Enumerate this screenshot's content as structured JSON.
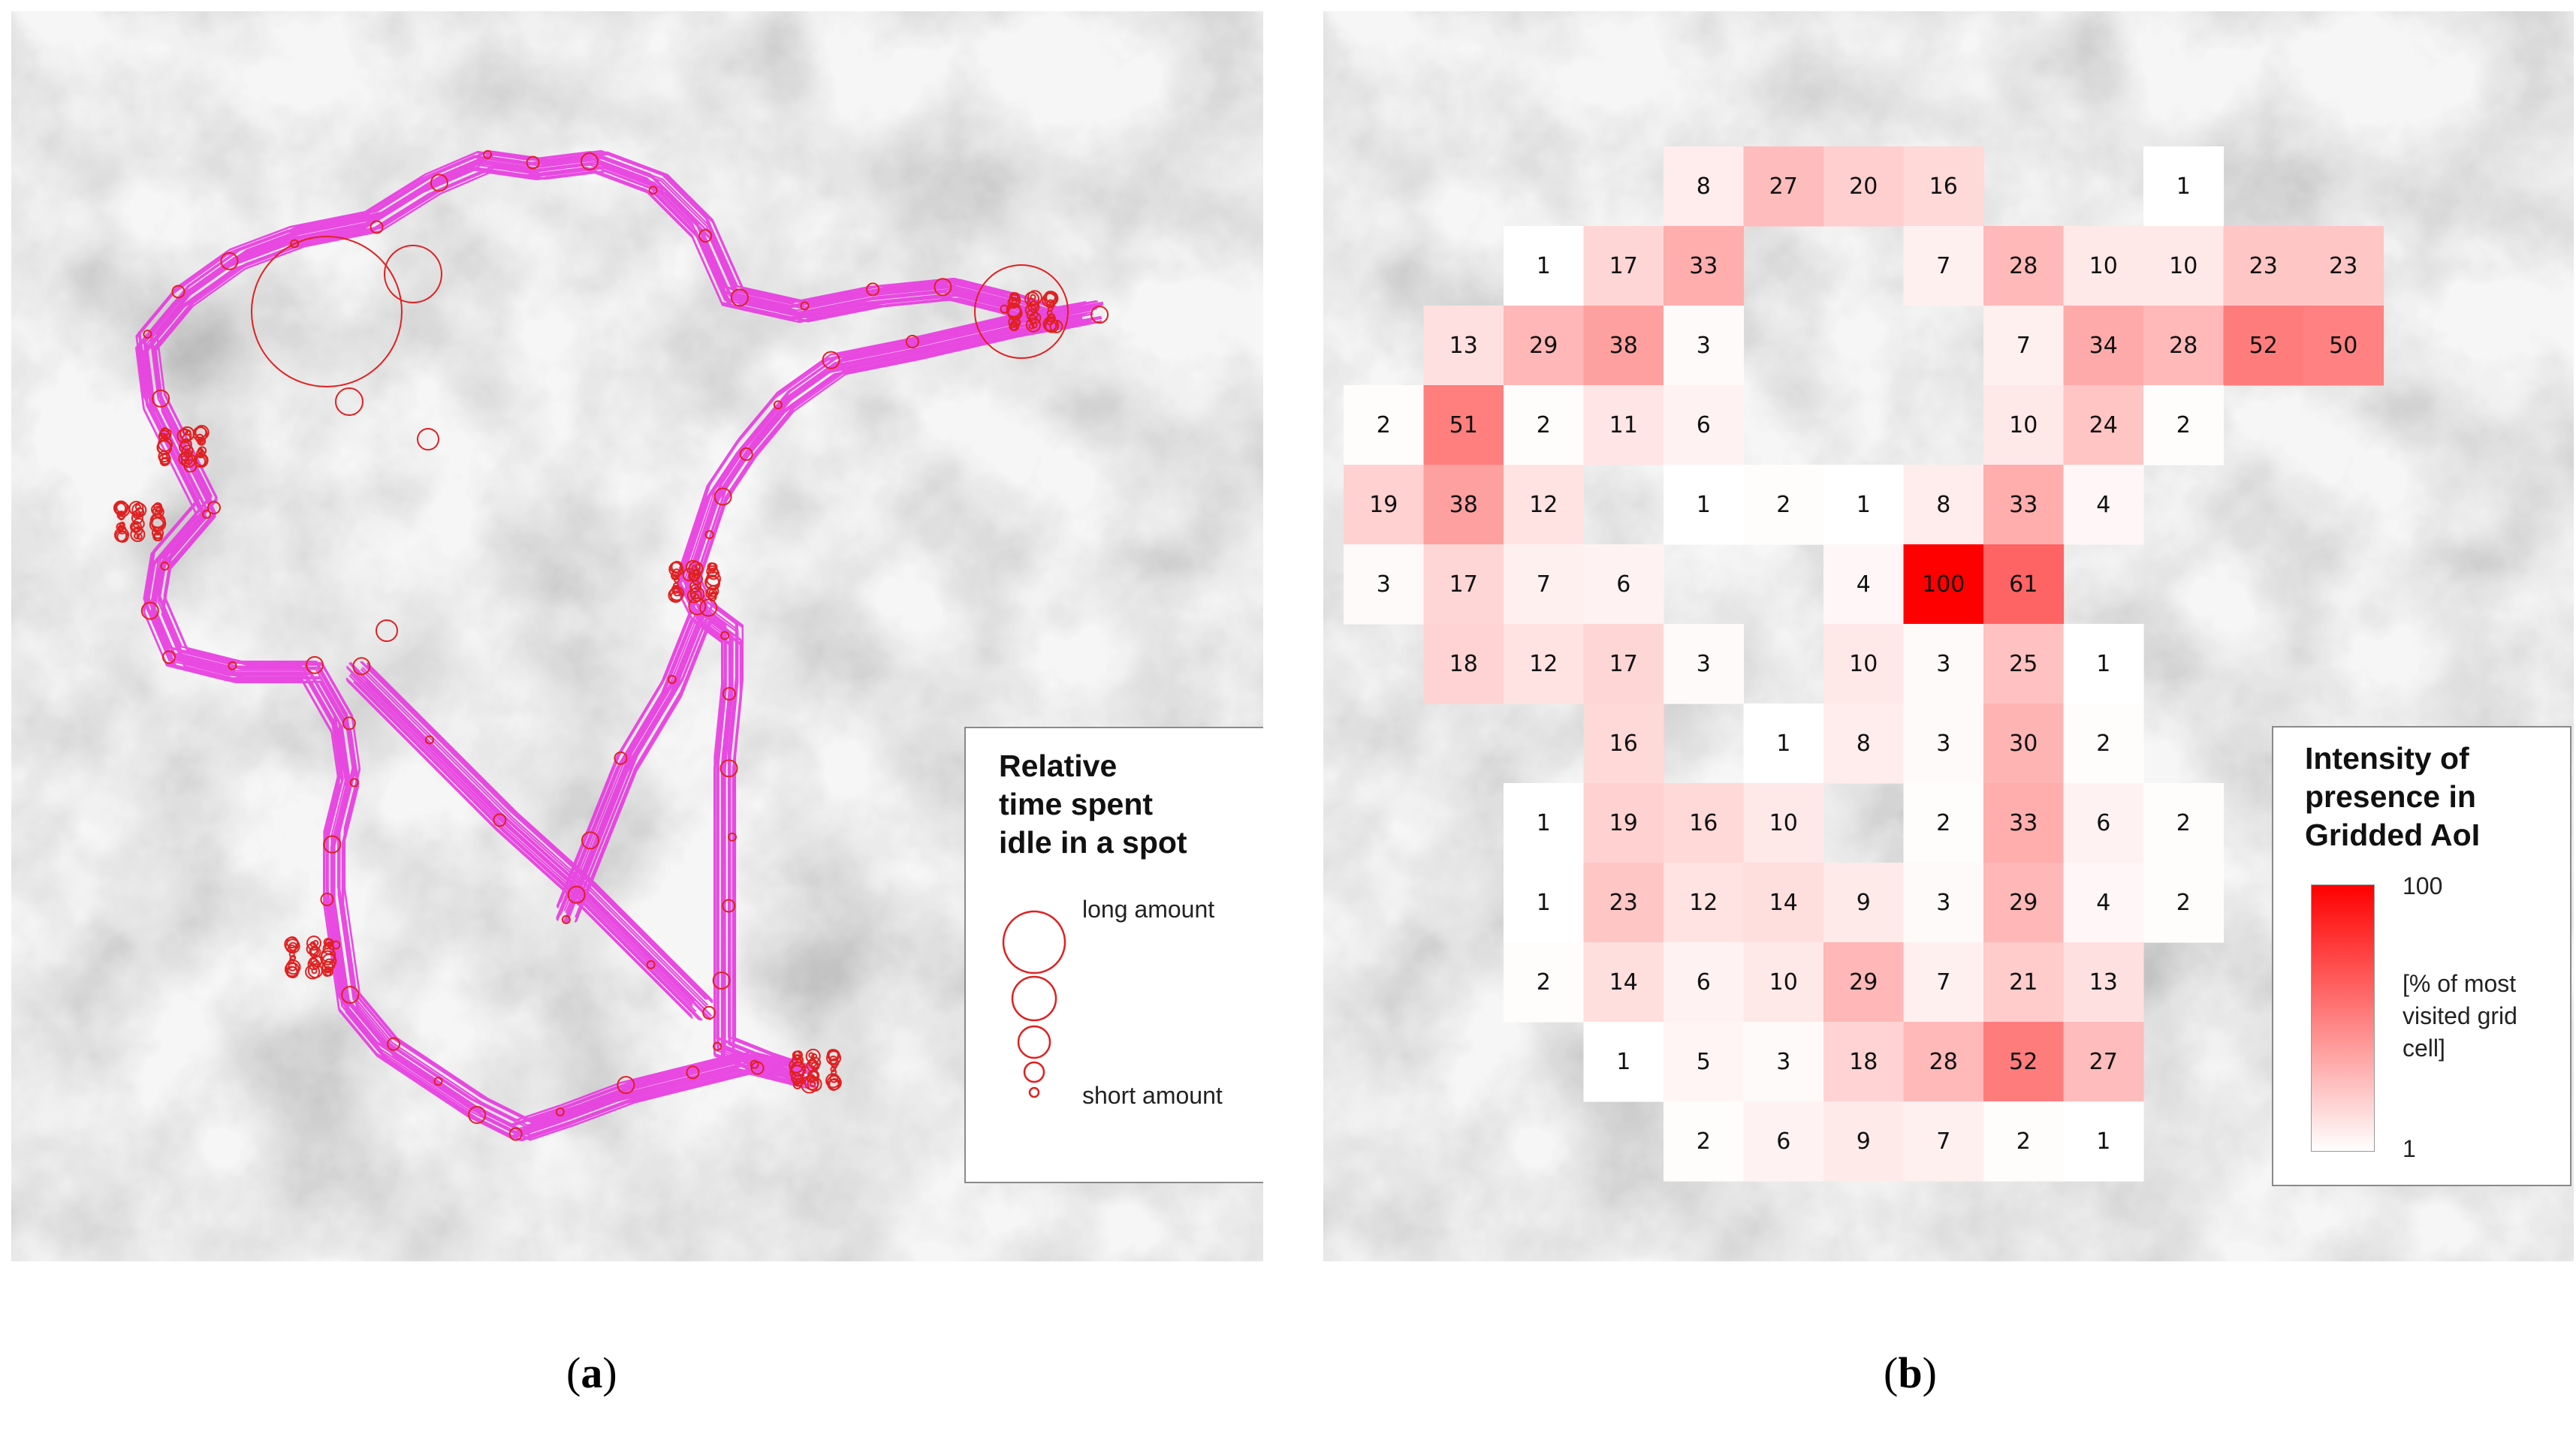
{
  "panel_a": {
    "caption": "a",
    "legend": {
      "title_lines": [
        "Relative",
        "time spent",
        "idle in a spot"
      ],
      "long_label": "long amount",
      "short_label": "short amount"
    },
    "colors": {
      "track": "#e838e0",
      "idle_circle": "#e02020"
    }
  },
  "panel_b": {
    "caption": "b",
    "legend": {
      "title_lines": [
        "Intensity of",
        "presence in",
        "Gridded AoI"
      ],
      "max_label": "100",
      "min_label": "1",
      "unit_lines": [
        "[% of most",
        "visited grid",
        "cell]"
      ]
    },
    "colors": {
      "high": "#ff0000",
      "low": "#ffffff"
    }
  },
  "chart_data": {
    "type": "heatmap",
    "title": "Intensity of presence in Gridded AoI",
    "unit": "[% of most visited grid cell]",
    "scale_min": 1,
    "scale_max": 100,
    "cells": [
      {
        "row": 0,
        "col": 4,
        "value": 8
      },
      {
        "row": 0,
        "col": 5,
        "value": 27
      },
      {
        "row": 0,
        "col": 6,
        "value": 20
      },
      {
        "row": 0,
        "col": 7,
        "value": 16
      },
      {
        "row": 0,
        "col": 10,
        "value": 1
      },
      {
        "row": 1,
        "col": 2,
        "value": 1
      },
      {
        "row": 1,
        "col": 3,
        "value": 17
      },
      {
        "row": 1,
        "col": 4,
        "value": 33
      },
      {
        "row": 1,
        "col": 7,
        "value": 7
      },
      {
        "row": 1,
        "col": 8,
        "value": 28
      },
      {
        "row": 1,
        "col": 9,
        "value": 10
      },
      {
        "row": 1,
        "col": 10,
        "value": 10
      },
      {
        "row": 1,
        "col": 11,
        "value": 23
      },
      {
        "row": 1,
        "col": 12,
        "value": 23
      },
      {
        "row": 2,
        "col": 1,
        "value": 13
      },
      {
        "row": 2,
        "col": 2,
        "value": 29
      },
      {
        "row": 2,
        "col": 3,
        "value": 38
      },
      {
        "row": 2,
        "col": 4,
        "value": 3
      },
      {
        "row": 2,
        "col": 8,
        "value": 7
      },
      {
        "row": 2,
        "col": 9,
        "value": 34
      },
      {
        "row": 2,
        "col": 10,
        "value": 28
      },
      {
        "row": 2,
        "col": 11,
        "value": 52
      },
      {
        "row": 2,
        "col": 12,
        "value": 50
      },
      {
        "row": 3,
        "col": 0,
        "value": 2
      },
      {
        "row": 3,
        "col": 1,
        "value": 51
      },
      {
        "row": 3,
        "col": 2,
        "value": 2
      },
      {
        "row": 3,
        "col": 3,
        "value": 11
      },
      {
        "row": 3,
        "col": 4,
        "value": 6
      },
      {
        "row": 3,
        "col": 8,
        "value": 10
      },
      {
        "row": 3,
        "col": 9,
        "value": 24
      },
      {
        "row": 3,
        "col": 10,
        "value": 2
      },
      {
        "row": 4,
        "col": 0,
        "value": 19
      },
      {
        "row": 4,
        "col": 1,
        "value": 38
      },
      {
        "row": 4,
        "col": 2,
        "value": 12
      },
      {
        "row": 4,
        "col": 4,
        "value": 1
      },
      {
        "row": 4,
        "col": 5,
        "value": 2
      },
      {
        "row": 4,
        "col": 6,
        "value": 1
      },
      {
        "row": 4,
        "col": 7,
        "value": 8
      },
      {
        "row": 4,
        "col": 8,
        "value": 33
      },
      {
        "row": 4,
        "col": 9,
        "value": 4
      },
      {
        "row": 5,
        "col": 0,
        "value": 3
      },
      {
        "row": 5,
        "col": 1,
        "value": 17
      },
      {
        "row": 5,
        "col": 2,
        "value": 7
      },
      {
        "row": 5,
        "col": 3,
        "value": 6
      },
      {
        "row": 5,
        "col": 6,
        "value": 4
      },
      {
        "row": 5,
        "col": 7,
        "value": 100
      },
      {
        "row": 5,
        "col": 8,
        "value": 61
      },
      {
        "row": 6,
        "col": 1,
        "value": 18
      },
      {
        "row": 6,
        "col": 2,
        "value": 12
      },
      {
        "row": 6,
        "col": 3,
        "value": 17
      },
      {
        "row": 6,
        "col": 4,
        "value": 3
      },
      {
        "row": 6,
        "col": 6,
        "value": 10
      },
      {
        "row": 6,
        "col": 7,
        "value": 3
      },
      {
        "row": 6,
        "col": 8,
        "value": 25
      },
      {
        "row": 6,
        "col": 9,
        "value": 1
      },
      {
        "row": 7,
        "col": 3,
        "value": 16
      },
      {
        "row": 7,
        "col": 5,
        "value": 1
      },
      {
        "row": 7,
        "col": 6,
        "value": 8
      },
      {
        "row": 7,
        "col": 7,
        "value": 3
      },
      {
        "row": 7,
        "col": 8,
        "value": 30
      },
      {
        "row": 7,
        "col": 9,
        "value": 2
      },
      {
        "row": 8,
        "col": 2,
        "value": 1
      },
      {
        "row": 8,
        "col": 3,
        "value": 19
      },
      {
        "row": 8,
        "col": 4,
        "value": 16
      },
      {
        "row": 8,
        "col": 5,
        "value": 10
      },
      {
        "row": 8,
        "col": 7,
        "value": 2
      },
      {
        "row": 8,
        "col": 8,
        "value": 33
      },
      {
        "row": 8,
        "col": 9,
        "value": 6
      },
      {
        "row": 8,
        "col": 10,
        "value": 2
      },
      {
        "row": 9,
        "col": 2,
        "value": 1
      },
      {
        "row": 9,
        "col": 3,
        "value": 23
      },
      {
        "row": 9,
        "col": 4,
        "value": 12
      },
      {
        "row": 9,
        "col": 5,
        "value": 14
      },
      {
        "row": 9,
        "col": 6,
        "value": 9
      },
      {
        "row": 9,
        "col": 7,
        "value": 3
      },
      {
        "row": 9,
        "col": 8,
        "value": 29
      },
      {
        "row": 9,
        "col": 9,
        "value": 4
      },
      {
        "row": 9,
        "col": 10,
        "value": 2
      },
      {
        "row": 10,
        "col": 2,
        "value": 2
      },
      {
        "row": 10,
        "col": 3,
        "value": 14
      },
      {
        "row": 10,
        "col": 4,
        "value": 6
      },
      {
        "row": 10,
        "col": 5,
        "value": 10
      },
      {
        "row": 10,
        "col": 6,
        "value": 29
      },
      {
        "row": 10,
        "col": 7,
        "value": 7
      },
      {
        "row": 10,
        "col": 8,
        "value": 21
      },
      {
        "row": 10,
        "col": 9,
        "value": 13
      },
      {
        "row": 11,
        "col": 3,
        "value": 1
      },
      {
        "row": 11,
        "col": 4,
        "value": 5
      },
      {
        "row": 11,
        "col": 5,
        "value": 3
      },
      {
        "row": 11,
        "col": 6,
        "value": 18
      },
      {
        "row": 11,
        "col": 7,
        "value": 28
      },
      {
        "row": 11,
        "col": 8,
        "value": 52
      },
      {
        "row": 11,
        "col": 9,
        "value": 27
      },
      {
        "row": 12,
        "col": 4,
        "value": 2
      },
      {
        "row": 12,
        "col": 5,
        "value": 6
      },
      {
        "row": 12,
        "col": 6,
        "value": 9
      },
      {
        "row": 12,
        "col": 7,
        "value": 7
      },
      {
        "row": 12,
        "col": 8,
        "value": 2
      },
      {
        "row": 12,
        "col": 9,
        "value": 1
      }
    ]
  }
}
